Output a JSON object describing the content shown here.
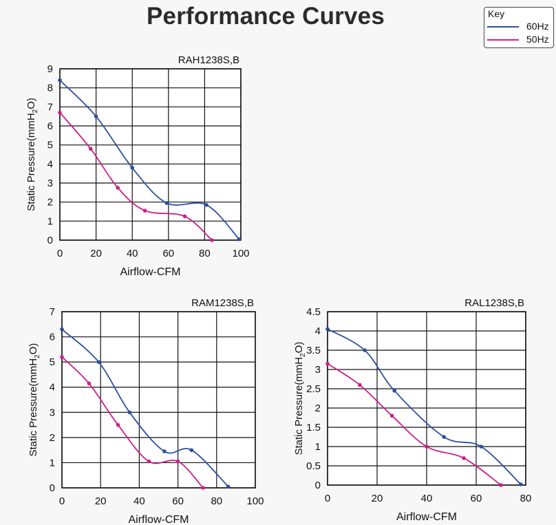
{
  "page": {
    "title": "Performance Curves"
  },
  "key": {
    "title": "Key",
    "items": [
      {
        "label": "60Hz",
        "color": "#2a4fa0"
      },
      {
        "label": "50Hz",
        "color": "#cc1f88"
      }
    ]
  },
  "chart_data": [
    {
      "type": "line",
      "title": "RAH1238S,B",
      "xlabel": "Airflow-CFM",
      "ylabel": "Static Pressure(mmH2O)",
      "xlim": [
        0,
        100
      ],
      "ylim": [
        0,
        9
      ],
      "xticks": [
        "0",
        "20",
        "40",
        "60",
        "80",
        "100"
      ],
      "yticks": [
        "0",
        "1",
        "2",
        "3",
        "4",
        "5",
        "6",
        "7",
        "8",
        "9"
      ],
      "grid": true,
      "series": [
        {
          "name": "60Hz",
          "color": "#2a4fa0",
          "points": [
            [
              0,
              8.4
            ],
            [
              20,
              6.5
            ],
            [
              40,
              3.8
            ],
            [
              59,
              1.95
            ],
            [
              81,
              1.85
            ],
            [
              99,
              0.05
            ]
          ]
        },
        {
          "name": "50Hz",
          "color": "#cc1f88",
          "points": [
            [
              0,
              6.7
            ],
            [
              17,
              4.8
            ],
            [
              32,
              2.75
            ],
            [
              47,
              1.55
            ],
            [
              69,
              1.25
            ],
            [
              84,
              0
            ]
          ]
        }
      ]
    },
    {
      "type": "line",
      "title": "RAM1238S,B",
      "xlabel": "Airflow-CFM",
      "ylabel": "Static Pressure(mmH2O)",
      "xlim": [
        0,
        100
      ],
      "ylim": [
        0,
        7
      ],
      "xticks": [
        "0",
        "20",
        "40",
        "60",
        "80",
        "100"
      ],
      "yticks": [
        "0",
        "1",
        "2",
        "3",
        "4",
        "5",
        "6",
        "7"
      ],
      "grid": true,
      "series": [
        {
          "name": "60Hz",
          "color": "#2a4fa0",
          "points": [
            [
              0,
              6.3
            ],
            [
              19,
              5.0
            ],
            [
              35,
              3.0
            ],
            [
              53,
              1.45
            ],
            [
              67,
              1.5
            ],
            [
              86,
              0.05
            ]
          ]
        },
        {
          "name": "50Hz",
          "color": "#cc1f88",
          "points": [
            [
              0,
              5.2
            ],
            [
              14,
              4.15
            ],
            [
              29,
              2.5
            ],
            [
              45,
              1.05
            ],
            [
              60,
              1.05
            ],
            [
              73,
              0
            ]
          ]
        }
      ]
    },
    {
      "type": "line",
      "title": "RAL1238S,B",
      "xlabel": "Airflow-CFM",
      "ylabel": "Static Pressure(mmH2O)",
      "xlim": [
        0,
        80
      ],
      "ylim": [
        0,
        4.5
      ],
      "xticks": [
        "0",
        "20",
        "40",
        "60",
        "80"
      ],
      "yticks": [
        "0",
        "0.5",
        "1",
        "1.5",
        "2",
        "2.5",
        "3",
        "3.5",
        "4",
        "4.5"
      ],
      "grid": true,
      "series": [
        {
          "name": "60Hz",
          "color": "#2a4fa0",
          "points": [
            [
              0,
              4.05
            ],
            [
              15,
              3.5
            ],
            [
              27,
              2.45
            ],
            [
              47,
              1.25
            ],
            [
              62,
              1.0
            ],
            [
              78,
              0.02
            ]
          ]
        },
        {
          "name": "50Hz",
          "color": "#cc1f88",
          "points": [
            [
              0,
              3.15
            ],
            [
              13,
              2.6
            ],
            [
              26,
              1.8
            ],
            [
              40,
              1.0
            ],
            [
              55,
              0.7
            ],
            [
              70,
              0
            ]
          ]
        }
      ]
    }
  ]
}
